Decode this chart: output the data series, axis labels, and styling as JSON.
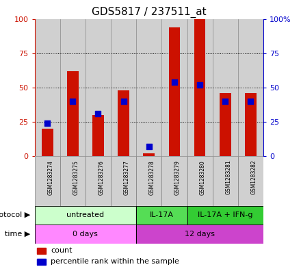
{
  "title": "GDS5817 / 237511_at",
  "samples": [
    "GSM1283274",
    "GSM1283275",
    "GSM1283276",
    "GSM1283277",
    "GSM1283278",
    "GSM1283279",
    "GSM1283280",
    "GSM1283281",
    "GSM1283282"
  ],
  "count_values": [
    20,
    62,
    30,
    48,
    2,
    94,
    100,
    46,
    46
  ],
  "percentile_values": [
    24,
    40,
    31,
    40,
    7,
    54,
    52,
    40,
    40
  ],
  "protocol_groups": [
    {
      "label": "untreated",
      "start": 0,
      "end": 4,
      "color": "#ccffcc"
    },
    {
      "label": "IL-17A",
      "start": 4,
      "end": 6,
      "color": "#55dd55"
    },
    {
      "label": "IL-17A + IFN-g",
      "start": 6,
      "end": 9,
      "color": "#33cc33"
    }
  ],
  "time_groups": [
    {
      "label": "0 days",
      "start": 0,
      "end": 4,
      "color": "#ff88ff"
    },
    {
      "label": "12 days",
      "start": 4,
      "end": 9,
      "color": "#cc44cc"
    }
  ],
  "bar_color": "#cc1100",
  "dot_color": "#0000cc",
  "ylim": [
    0,
    100
  ],
  "yticks": [
    0,
    25,
    50,
    75,
    100
  ],
  "yticklabels_left": [
    "0",
    "25",
    "50",
    "75",
    "100"
  ],
  "yticklabels_right": [
    "0",
    "25",
    "50",
    "75",
    "100%"
  ],
  "grid_color": "#000000",
  "background_color": "#ffffff",
  "sample_bg_color": "#d0d0d0",
  "bar_width": 0.45,
  "dot_size": 28,
  "title_fontsize": 11
}
